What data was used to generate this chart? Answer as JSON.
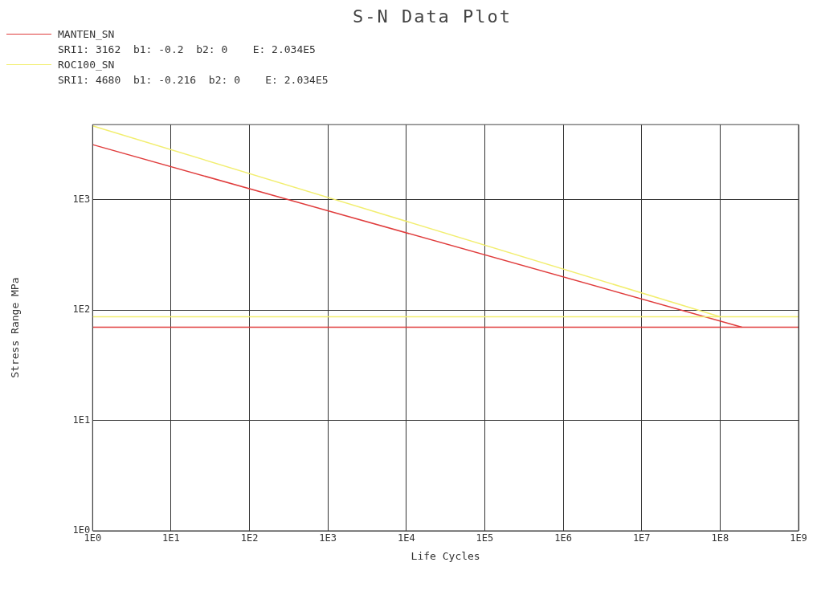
{
  "chart_data": {
    "type": "line",
    "title": "S-N Data Plot",
    "xlabel": "Life Cycles",
    "ylabel": "Stress Range MPa",
    "annotations": [
      "SRI1: 3162  b1: -0.2  b2: 0    E: 2.034E5",
      "SRI1: 4680  b1: -0.216  b2: 0    E: 2.034E5"
    ],
    "series": [
      {
        "name": "MANTEN_SN",
        "color": "#e03c3c",
        "x": [
          1,
          190000000
        ],
        "values": [
          3162,
          70
        ]
      },
      {
        "name": "ROC100_SN",
        "color": "#f2ee70",
        "x": [
          1,
          100000000
        ],
        "values": [
          4680,
          87
        ]
      }
    ],
    "ref_lines": [
      {
        "axis": "y",
        "value": 70,
        "color": "#e03c3c"
      },
      {
        "axis": "y",
        "value": 87,
        "color": "#f2ee70"
      }
    ],
    "log": "xy",
    "xlim": [
      1,
      1000000000
    ],
    "ylim": [
      1,
      4800
    ],
    "xticks": [
      {
        "value": 1,
        "label": "1E0"
      },
      {
        "value": 10,
        "label": "1E1"
      },
      {
        "value": 100,
        "label": "1E2"
      },
      {
        "value": 1000,
        "label": "1E3"
      },
      {
        "value": 10000,
        "label": "1E4"
      },
      {
        "value": 100000,
        "label": "1E5"
      },
      {
        "value": 1000000,
        "label": "1E6"
      },
      {
        "value": 10000000,
        "label": "1E7"
      },
      {
        "value": 100000000,
        "label": "1E8"
      },
      {
        "value": 1000000000,
        "label": "1E9"
      }
    ],
    "yticks": [
      {
        "value": 1,
        "label": "1E0"
      },
      {
        "value": 10,
        "label": "1E1"
      },
      {
        "value": 100,
        "label": "1E2"
      },
      {
        "value": 1000,
        "label": "1E3"
      }
    ],
    "grid": true,
    "legend": "top left",
    "line_style": "solid",
    "marker": "none"
  }
}
